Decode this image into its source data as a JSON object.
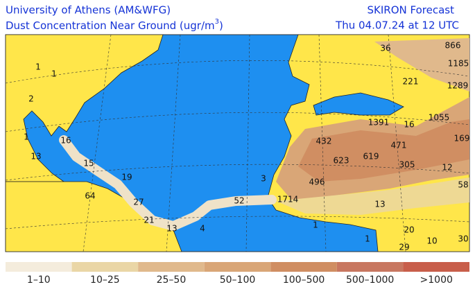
{
  "header": {
    "institution": "University of Athens (AM&WFG)",
    "product": "Dust Concentration Near Ground (ugr/m",
    "product_exponent": "3",
    "product_end": ")",
    "model": "SKIRON Forecast",
    "valid_time": "Thu 04.07.24 at 12 UTC"
  },
  "map_labels": [
    "1",
    "1",
    "2",
    "1",
    "13",
    "16",
    "15",
    "19",
    "64",
    "27",
    "21",
    "13",
    "4",
    "52",
    "1714",
    "3",
    "13",
    "1",
    "1",
    "20",
    "10",
    "29",
    "30",
    "58",
    "12",
    "305",
    "619",
    "623",
    "496",
    "432",
    "471",
    "1391",
    "16",
    "1055",
    "169",
    "1289",
    "1185",
    "866",
    "36",
    "221"
  ],
  "legend": [
    {
      "label": "1–10",
      "color": "#f4ecdc"
    },
    {
      "label": "10–25",
      "color": "#ead6a6"
    },
    {
      "label": "25–50",
      "color": "#e0b98c"
    },
    {
      "label": "50–100",
      "color": "#d9a677"
    },
    {
      "label": "100–500",
      "color": "#d08e62"
    },
    {
      "label": "500–1000",
      "color": "#c87760"
    },
    {
      "label": ">1000",
      "color": "#c85e4a"
    }
  ]
}
